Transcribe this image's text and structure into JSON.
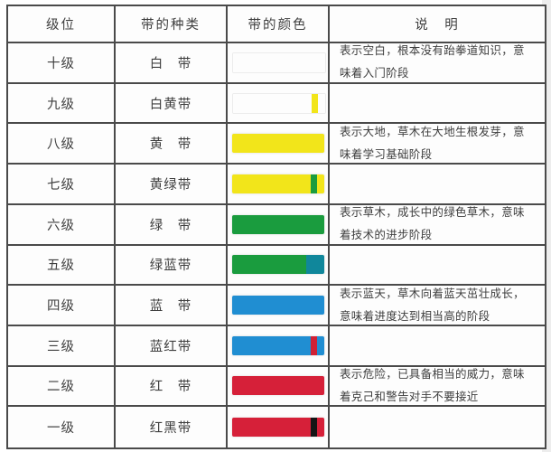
{
  "table": {
    "border_color": "#4a4a4a",
    "text_color": "#3e3e3e",
    "headers": {
      "level": "级位",
      "type": "带的种类",
      "color": "带的颜色",
      "desc": "说　明"
    },
    "rows": [
      {
        "level": "十级",
        "type": "白　带",
        "belt": {
          "name": "white-belt",
          "outline": true,
          "segments": [
            {
              "color": "#fdfdfd",
              "pct": 100
            }
          ]
        },
        "desc": "表示空白，根本没有跆拳道知识，意味着入门阶段"
      },
      {
        "level": "九级",
        "type": "白黄带",
        "belt": {
          "name": "white-yellow-belt",
          "outline": true,
          "segments": [
            {
              "color": "#fdfdfd",
              "pct": 85
            },
            {
              "color": "#f2e51a",
              "pct": 7
            },
            {
              "color": "#fdfdfd",
              "pct": 8
            }
          ]
        },
        "desc": ""
      },
      {
        "level": "八级",
        "type": "黄　带",
        "belt": {
          "name": "yellow-belt",
          "outline": false,
          "segments": [
            {
              "color": "#f2e51a",
              "pct": 100
            }
          ]
        },
        "desc": "表示大地，草木在大地生根发芽，意味着学习基础阶段"
      },
      {
        "level": "七级",
        "type": "黄绿带",
        "belt": {
          "name": "yellow-green-belt",
          "outline": false,
          "segments": [
            {
              "color": "#f2e51a",
              "pct": 85
            },
            {
              "color": "#1a9c3e",
              "pct": 7
            },
            {
              "color": "#f2e51a",
              "pct": 8
            }
          ]
        },
        "desc": ""
      },
      {
        "level": "六级",
        "type": "绿　带",
        "belt": {
          "name": "green-belt",
          "outline": false,
          "segments": [
            {
              "color": "#1a9c3e",
              "pct": 100
            }
          ]
        },
        "desc": "表示草木，成长中的绿色草木，意味着技术的进步阶段"
      },
      {
        "level": "五级",
        "type": "绿蓝带",
        "belt": {
          "name": "green-blue-belt",
          "outline": false,
          "segments": [
            {
              "color": "#1a9c3e",
              "pct": 80
            },
            {
              "color": "#10879b",
              "pct": 20
            }
          ]
        },
        "desc": ""
      },
      {
        "level": "四级",
        "type": "蓝　带",
        "belt": {
          "name": "blue-belt",
          "outline": false,
          "segments": [
            {
              "color": "#208ed2",
              "pct": 100
            }
          ]
        },
        "desc": "表示蓝天，草木向着蓝天茁壮成长，意味着进度达到相当高的阶段"
      },
      {
        "level": "三级",
        "type": "蓝红带",
        "belt": {
          "name": "blue-red-belt",
          "outline": false,
          "segments": [
            {
              "color": "#208ed2",
              "pct": 85
            },
            {
              "color": "#cf2135",
              "pct": 7
            },
            {
              "color": "#208ed2",
              "pct": 8
            }
          ]
        },
        "desc": ""
      },
      {
        "level": "二级",
        "type": "红　带",
        "belt": {
          "name": "red-belt",
          "outline": false,
          "segments": [
            {
              "color": "#d62039",
              "pct": 100
            }
          ]
        },
        "desc": "表示危险，已具备相当的威力，意味着克己和警告对手不要接近"
      },
      {
        "level": "一级",
        "type": "红黑带",
        "belt": {
          "name": "red-black-belt",
          "outline": false,
          "segments": [
            {
              "color": "#d62039",
              "pct": 85
            },
            {
              "color": "#151515",
              "pct": 7
            },
            {
              "color": "#d62039",
              "pct": 8
            }
          ]
        },
        "desc": ""
      }
    ]
  }
}
